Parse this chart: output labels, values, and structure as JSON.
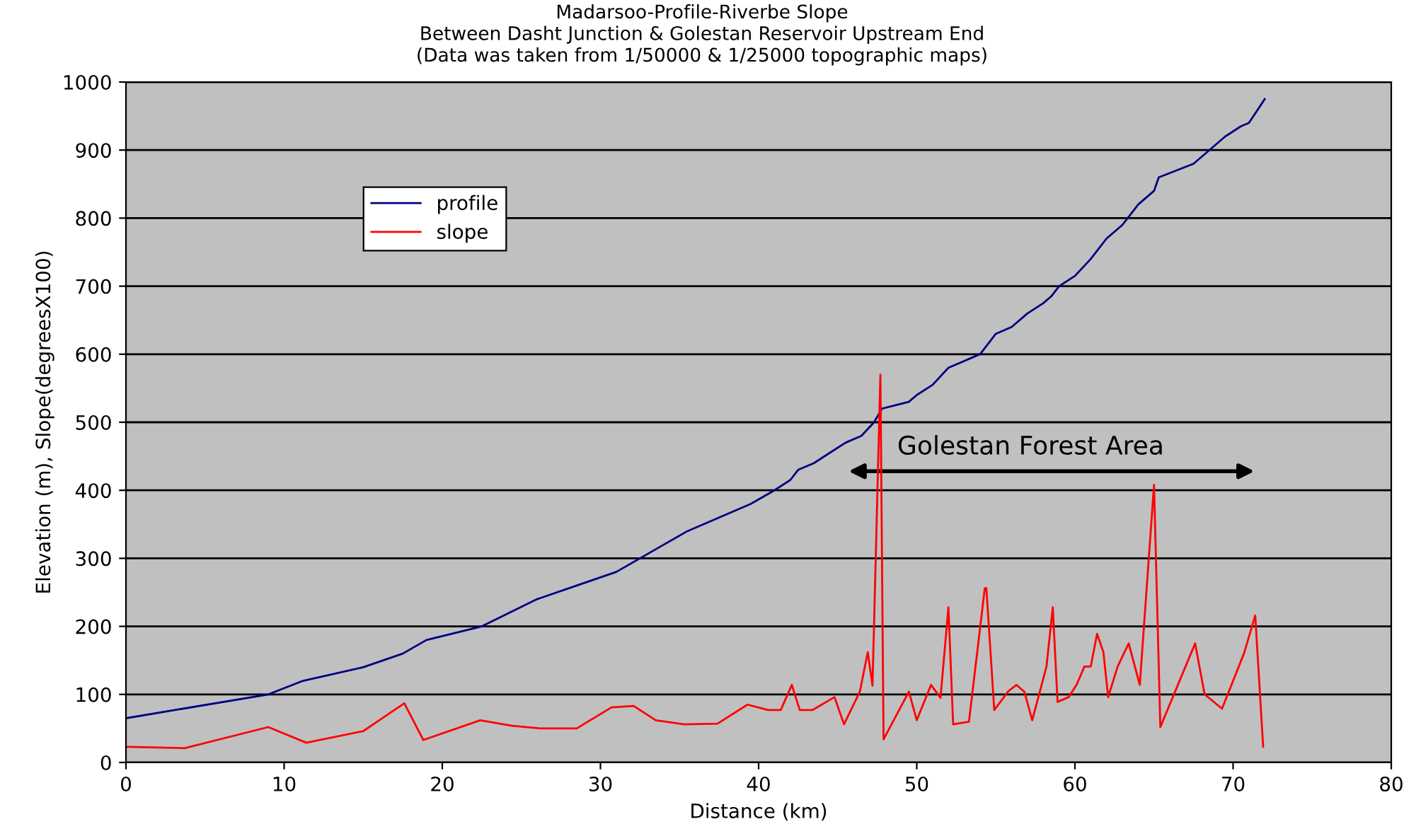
{
  "chart_data": {
    "type": "line",
    "title": "Madarsoo-Profile-Riverbe Slope\nBetween Dasht Junction & Golestan Reservoir Upstream End\n(Data was taken from 1/50000 & 1/25000 topographic maps)",
    "xlabel": "Distance (km)",
    "ylabel": "Elevation (m), Slope(degreesX100)",
    "series": [
      {
        "name": "profile",
        "color": "#000080",
        "x": [
          0,
          9,
          11.2,
          15,
          17.5,
          19,
          22.5,
          26,
          28.5,
          31,
          32.5,
          34,
          35.5,
          37.5,
          39.5,
          41,
          42,
          42.5,
          43.5,
          44.5,
          45.5,
          46.5,
          47.3,
          47.8,
          49.5,
          50,
          51,
          52,
          53.5,
          54,
          55,
          56,
          57,
          58,
          58.5,
          59,
          60,
          61,
          61.5,
          62,
          63,
          63.5,
          64,
          65,
          65.3,
          67.5,
          68.5,
          69.5,
          70.5,
          71,
          72
        ],
        "values": [
          65,
          100,
          120,
          140,
          160,
          180,
          200,
          240,
          260,
          280,
          300,
          320,
          340,
          360,
          380,
          400,
          415,
          430,
          440,
          455,
          470,
          480,
          500,
          520,
          530,
          540,
          555,
          580,
          595,
          600,
          630,
          640,
          660,
          675,
          685,
          700,
          715,
          740,
          755,
          770,
          790,
          805,
          820,
          840,
          860,
          880,
          900,
          920,
          935,
          940,
          975
        ]
      },
      {
        "name": "slope",
        "color": "#ff0000",
        "x": [
          0,
          3.7,
          9,
          11.4,
          15,
          17.6,
          18.8,
          22.4,
          24.4,
          26.2,
          28.5,
          30.7,
          32.1,
          33.5,
          35.3,
          37.4,
          39.3,
          40.6,
          41.4,
          42.1,
          42.6,
          43.4,
          44.8,
          45.4,
          46.4,
          46.9,
          47.2,
          47.7,
          47.9,
          49.5,
          50,
          50.9,
          51.5,
          52,
          52.3,
          53.3,
          54.3,
          54.4,
          54.9,
          55.8,
          56.3,
          56.8,
          57.3,
          58.2,
          58.6,
          58.9,
          59.6,
          60.1,
          60.6,
          61,
          61.4,
          61.8,
          62.1,
          62.7,
          63.4,
          64.1,
          65,
          65.4,
          67.6,
          68.2,
          69.3,
          70.7,
          71.4,
          71.9
        ],
        "values": [
          23,
          21,
          52,
          29,
          46,
          87,
          33,
          62,
          54,
          50,
          50,
          81,
          83,
          62,
          56,
          57,
          85,
          77,
          77,
          114,
          77,
          77,
          96,
          56,
          104,
          162,
          113,
          570,
          34,
          104,
          62,
          114,
          95,
          228,
          56,
          60,
          256,
          256,
          77,
          105,
          114,
          104,
          62,
          141,
          228,
          89,
          96,
          114,
          141,
          141,
          189,
          162,
          96,
          141,
          175,
          114,
          408,
          52,
          175,
          100,
          79,
          161,
          216,
          23
        ]
      }
    ],
    "annotations": [
      "Golestan Forest Area"
    ],
    "xlim": [
      0,
      80
    ],
    "xticks": [
      0,
      10,
      20,
      30,
      40,
      50,
      60,
      70,
      80
    ],
    "ylim": [
      0,
      1000
    ],
    "yticks": [
      0,
      100,
      200,
      300,
      400,
      500,
      600,
      700,
      800,
      900,
      1000
    ],
    "grid": "y",
    "legend": "top left",
    "marker": "none",
    "line_style": "solid"
  }
}
